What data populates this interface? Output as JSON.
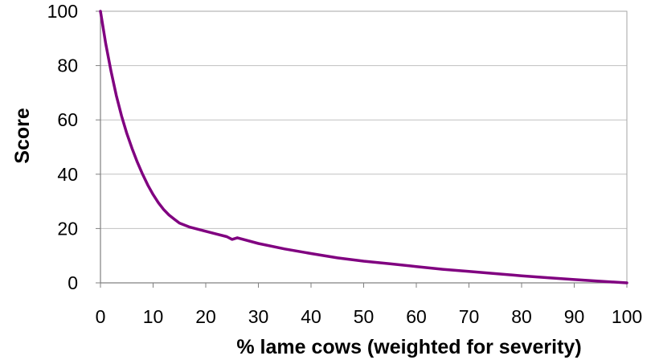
{
  "chart_data": {
    "type": "line",
    "title": "",
    "xlabel": "% lame cows (weighted for severity)",
    "ylabel": "Score",
    "xlim": [
      0,
      100
    ],
    "ylim": [
      0,
      100
    ],
    "x_ticks": [
      "0",
      "10",
      "20",
      "30",
      "40",
      "50",
      "60",
      "70",
      "80",
      "90",
      "100"
    ],
    "y_ticks": [
      "0",
      "20",
      "40",
      "60",
      "80",
      "100"
    ],
    "grid": "horizontal",
    "legend": "none",
    "series": [
      {
        "color": "#800080",
        "x": [
          0,
          1,
          2,
          3,
          4,
          5,
          6,
          7,
          8,
          9,
          10,
          11,
          12,
          13,
          14,
          15,
          17,
          20,
          22,
          24,
          25,
          26,
          30,
          35,
          40,
          45,
          50,
          55,
          60,
          65,
          70,
          75,
          80,
          85,
          90,
          95,
          100
        ],
        "y": [
          100,
          88,
          78,
          69,
          61.5,
          55,
          49.5,
          44.5,
          40,
          36,
          32.5,
          29.5,
          27,
          25,
          23.5,
          22,
          20.5,
          19,
          18,
          17,
          16,
          16.6,
          14.5,
          12.5,
          10.8,
          9.2,
          8,
          7,
          6,
          5,
          4.2,
          3.4,
          2.6,
          1.9,
          1.2,
          0.6,
          0
        ]
      }
    ]
  }
}
